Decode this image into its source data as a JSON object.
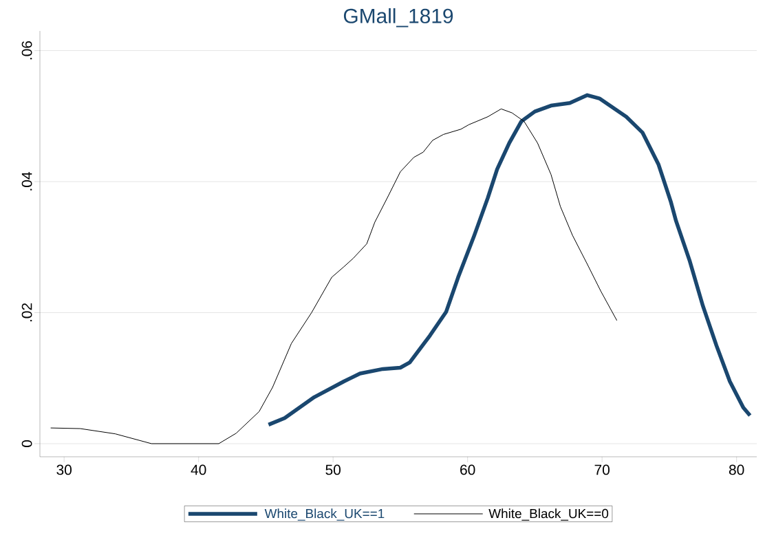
{
  "chart_data": {
    "type": "line",
    "title": "GMall_1819",
    "xlim": [
      28.2,
      81.5
    ],
    "ylim": [
      -0.002,
      0.063
    ],
    "xticks": [
      30,
      40,
      50,
      60,
      70,
      80
    ],
    "yticks": [
      0,
      {
        "value": 0.02,
        "label": ".02"
      },
      {
        "value": 0.04,
        "label": ".04"
      },
      {
        "value": 0.06,
        "label": ".06"
      }
    ],
    "grid": "y",
    "legend": "bottom",
    "marker": "none",
    "line_style": "solid",
    "series": [
      {
        "name": "White_Black_UK==1",
        "color": "#1a476f",
        "x": [
          45.2,
          46.4,
          48.6,
          50.8,
          52.0,
          53.7,
          55.0,
          55.7,
          57.2,
          58.4,
          59.3,
          60.5,
          61.5,
          62.2,
          63.1,
          64.0,
          65.0,
          66.2,
          67.6,
          68.9,
          69.8,
          71.8,
          73.0,
          74.2,
          75.1,
          75.5,
          76.5,
          77.5,
          78.5,
          79.5,
          80.5,
          81.0
        ],
        "values": [
          0.0029,
          0.0039,
          0.0071,
          0.0095,
          0.0107,
          0.0114,
          0.0116,
          0.0124,
          0.0165,
          0.0201,
          0.0254,
          0.0318,
          0.0375,
          0.0419,
          0.0459,
          0.0492,
          0.0507,
          0.0516,
          0.052,
          0.0532,
          0.0527,
          0.0499,
          0.0475,
          0.0426,
          0.037,
          0.034,
          0.028,
          0.021,
          0.015,
          0.0095,
          0.0055,
          0.0043
        ]
      },
      {
        "name": "White_Black_UK==0",
        "color": "#000000",
        "x": [
          29.0,
          31.2,
          33.8,
          36.5,
          41.5,
          42.8,
          44.5,
          45.5,
          46.9,
          48.4,
          49.9,
          50.8,
          51.5,
          52.5,
          53.1,
          54.1,
          55.0,
          56.0,
          56.7,
          57.4,
          58.2,
          59.5,
          60.1,
          61.5,
          62.5,
          63.3,
          64.2,
          65.2,
          66.2,
          66.9,
          67.8,
          68.9,
          69.9,
          71.1
        ],
        "values": [
          0.0024,
          0.0023,
          0.0015,
          0.0,
          0.0,
          0.0016,
          0.0049,
          0.0086,
          0.0153,
          0.02,
          0.0254,
          0.027,
          0.0283,
          0.0305,
          0.0338,
          0.0378,
          0.0415,
          0.0437,
          0.0445,
          0.0463,
          0.0472,
          0.048,
          0.0487,
          0.0499,
          0.0511,
          0.0505,
          0.0492,
          0.0459,
          0.0411,
          0.0362,
          0.0318,
          0.0274,
          0.0233,
          0.0188
        ]
      }
    ]
  }
}
